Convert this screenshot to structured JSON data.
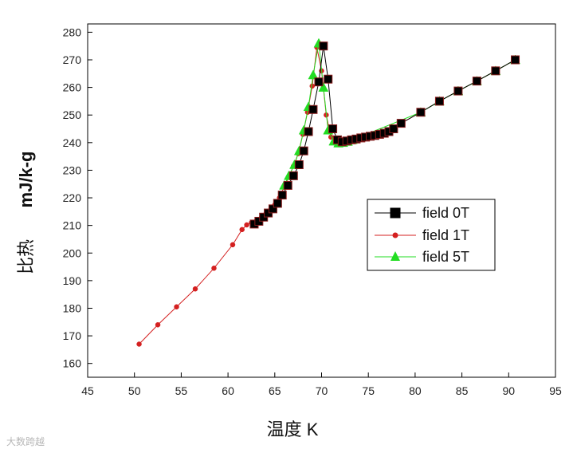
{
  "chart_data": {
    "type": "line",
    "xlabel": "温度   K",
    "ylabel_cn": "比热",
    "ylabel_unit": "mJ/k-g",
    "xlim": [
      45,
      95
    ],
    "ylim": [
      155,
      283
    ],
    "xticks": [
      45,
      50,
      55,
      60,
      65,
      70,
      75,
      80,
      85,
      90,
      95
    ],
    "yticks": [
      160,
      170,
      180,
      190,
      200,
      210,
      220,
      230,
      240,
      250,
      260,
      270,
      280
    ],
    "legend_placement": "right-middle",
    "series": [
      {
        "name": "field  0T",
        "color": "#000000",
        "marker": "square",
        "x": [
          62.8,
          63.3,
          63.8,
          64.3,
          64.8,
          65.3,
          65.8,
          66.4,
          67.0,
          67.6,
          68.1,
          68.6,
          69.1,
          69.7,
          70.2,
          70.7,
          71.2,
          71.7,
          72.2,
          72.7,
          73.2,
          73.7,
          74.2,
          74.7,
          75.2,
          75.7,
          76.2,
          76.7,
          77.2,
          77.7,
          78.5,
          80.6,
          82.6,
          84.6,
          86.6,
          88.6,
          90.7
        ],
        "y": [
          210.5,
          211.5,
          213,
          214.5,
          216,
          218,
          221,
          224.5,
          228,
          232,
          237,
          244,
          252,
          262,
          275,
          263,
          245,
          241,
          240.3,
          240.6,
          241,
          241.3,
          241.7,
          242,
          242.3,
          242.6,
          243,
          243.4,
          244,
          245,
          247,
          251,
          255,
          258.7,
          262.3,
          266,
          270
        ]
      },
      {
        "name": "field  1T",
        "color": "#d42020",
        "marker": "circle",
        "x": [
          50.5,
          52.5,
          54.5,
          56.5,
          58.5,
          60.5,
          61.5,
          62.0,
          62.5,
          63.0,
          63.5,
          64.0,
          64.5,
          65.0,
          65.5,
          66.0,
          66.5,
          67.0,
          67.5,
          68.0,
          68.5,
          69.0,
          69.5,
          70.0,
          70.5,
          71.0,
          71.5,
          72.0,
          72.5,
          73.0,
          73.5,
          74.0,
          74.5,
          75.0,
          75.5,
          76.0,
          76.5,
          77.0,
          77.5,
          78.5,
          80.6,
          82.6,
          84.6,
          86.6,
          88.6,
          90.7
        ],
        "y": [
          167,
          174,
          180.5,
          187,
          194.5,
          203,
          208.5,
          210.2,
          211,
          211.5,
          212.5,
          214,
          215.5,
          217.5,
          220,
          224,
          227.5,
          231.5,
          236,
          243,
          251,
          260.5,
          274.5,
          266,
          250,
          242,
          240.5,
          240.5,
          240.7,
          241,
          241.3,
          241.6,
          241.9,
          242.2,
          242.5,
          242.9,
          243.3,
          243.8,
          244.6,
          247,
          251,
          255,
          258.7,
          262.3,
          266,
          270
        ]
      },
      {
        "name": "field  5T",
        "color": "#22dd22",
        "marker": "triangle",
        "x": [
          66.0,
          66.5,
          67.1,
          67.6,
          68.1,
          68.6,
          69.1,
          69.7,
          70.2,
          70.7,
          71.3,
          71.8,
          72.3,
          72.8,
          73.3,
          80.6,
          82.6,
          84.6,
          86.6,
          88.6,
          90.7
        ],
        "y": [
          224.5,
          228,
          232,
          237,
          244.5,
          253,
          264.5,
          276,
          260,
          244.5,
          240.5,
          239.8,
          240,
          240.4,
          241,
          251,
          255,
          258.7,
          262.3,
          266,
          270
        ]
      }
    ],
    "series_draw_order": [
      1,
      2,
      0
    ],
    "watermark_text": "大数跨越"
  }
}
